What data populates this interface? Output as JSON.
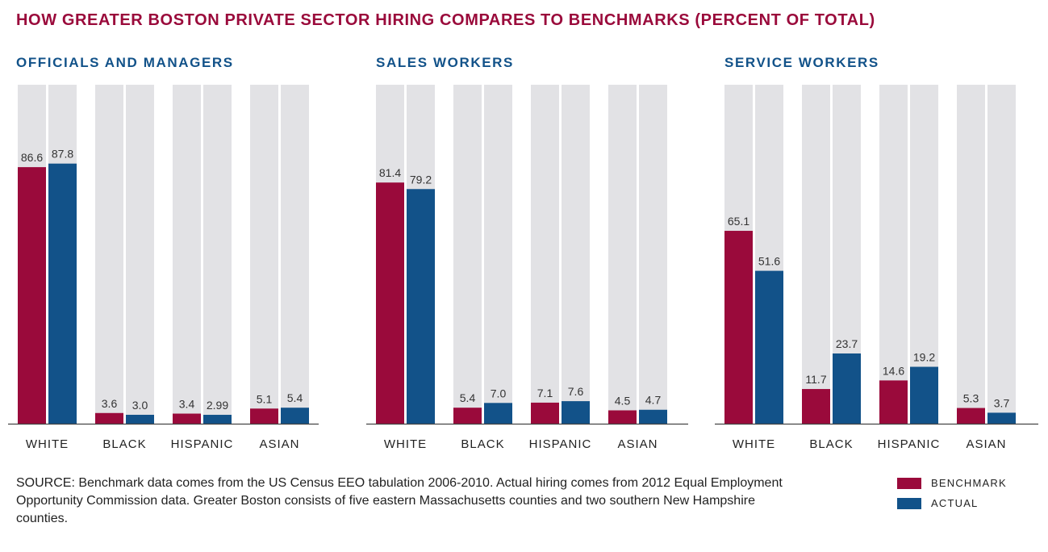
{
  "title": "HOW GREATER BOSTON PRIVATE SECTOR HIRING COMPARES TO BENCHMARKS (PERCENT OF TOTAL)",
  "source": "SOURCE: Benchmark data comes from the US Census EEO tabulation 2006-2010. Actual hiring comes from 2012 Equal Employment Opportunity Commission data. Greater Boston consists of five eastern Massachusetts counties and two southern  New Hampshire counties.",
  "colors": {
    "benchmark": "#9a0a3b",
    "actual": "#125289",
    "background_bar": "#e2e2e5",
    "title": "#9a0a3b",
    "panel_title": "#125289"
  },
  "legend": [
    {
      "label": "BENCHMARK",
      "color": "#9a0a3b"
    },
    {
      "label": "ACTUAL",
      "color": "#125289"
    }
  ],
  "chart_data": [
    {
      "type": "bar",
      "title": "OFFICIALS AND MANAGERS",
      "categories": [
        "WHITE",
        "BLACK",
        "HISPANIC",
        "ASIAN"
      ],
      "ylim": [
        0,
        100
      ],
      "series": [
        {
          "name": "BENCHMARK",
          "values": [
            86.6,
            3.6,
            3.4,
            5.1
          ],
          "labels": [
            "86.6",
            "3.6",
            "3.4",
            "5.1"
          ]
        },
        {
          "name": "ACTUAL",
          "values": [
            87.8,
            3.0,
            2.99,
            5.4
          ],
          "labels": [
            "87.8",
            "3.0",
            "2.99",
            "5.4"
          ]
        }
      ]
    },
    {
      "type": "bar",
      "title": "SALES WORKERS",
      "categories": [
        "WHITE",
        "BLACK",
        "HISPANIC",
        "ASIAN"
      ],
      "ylim": [
        0,
        100
      ],
      "series": [
        {
          "name": "BENCHMARK",
          "values": [
            81.4,
            5.4,
            7.1,
            4.5
          ],
          "labels": [
            "81.4",
            "5.4",
            "7.1",
            "4.5"
          ]
        },
        {
          "name": "ACTUAL",
          "values": [
            79.2,
            7.0,
            7.6,
            4.7
          ],
          "labels": [
            "79.2",
            "7.0",
            "7.6",
            "4.7"
          ]
        }
      ]
    },
    {
      "type": "bar",
      "title": "SERVICE WORKERS",
      "categories": [
        "WHITE",
        "BLACK",
        "HISPANIC",
        "ASIAN"
      ],
      "ylim": [
        0,
        100
      ],
      "series": [
        {
          "name": "BENCHMARK",
          "values": [
            65.1,
            11.7,
            14.6,
            5.3
          ],
          "labels": [
            "65.1",
            "11.7",
            "14.6",
            "5.3"
          ]
        },
        {
          "name": "ACTUAL",
          "values": [
            51.6,
            23.7,
            19.2,
            3.7
          ],
          "labels": [
            "51.6",
            "23.7",
            "19.2",
            "3.7"
          ]
        }
      ]
    }
  ]
}
